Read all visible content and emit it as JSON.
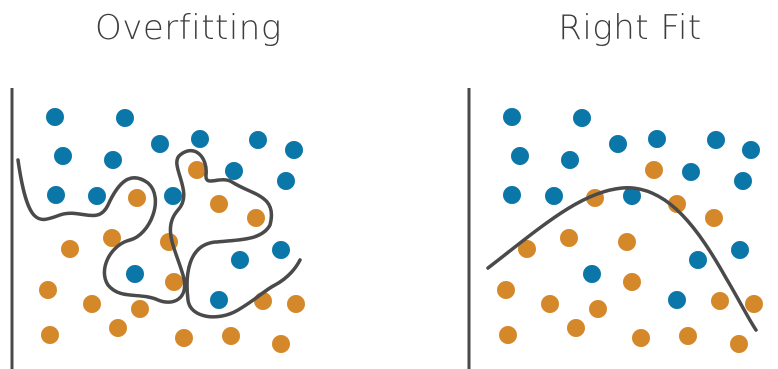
{
  "titles": {
    "left": "Overfitting",
    "right": "Right Fit"
  },
  "colors": {
    "class_a": "#0b76a8",
    "class_b": "#d5882a",
    "axis": "#4a4a4a",
    "curve": "#4a4a4a",
    "title": "#3d3d3d"
  },
  "panels": [
    {
      "id": "overfitting",
      "curve": "wiggly decision boundary",
      "point_classes": [
        "class_a",
        "class_b"
      ]
    },
    {
      "id": "right-fit",
      "curve": "smooth decision boundary",
      "point_classes": [
        "class_a",
        "class_b"
      ]
    }
  ]
}
